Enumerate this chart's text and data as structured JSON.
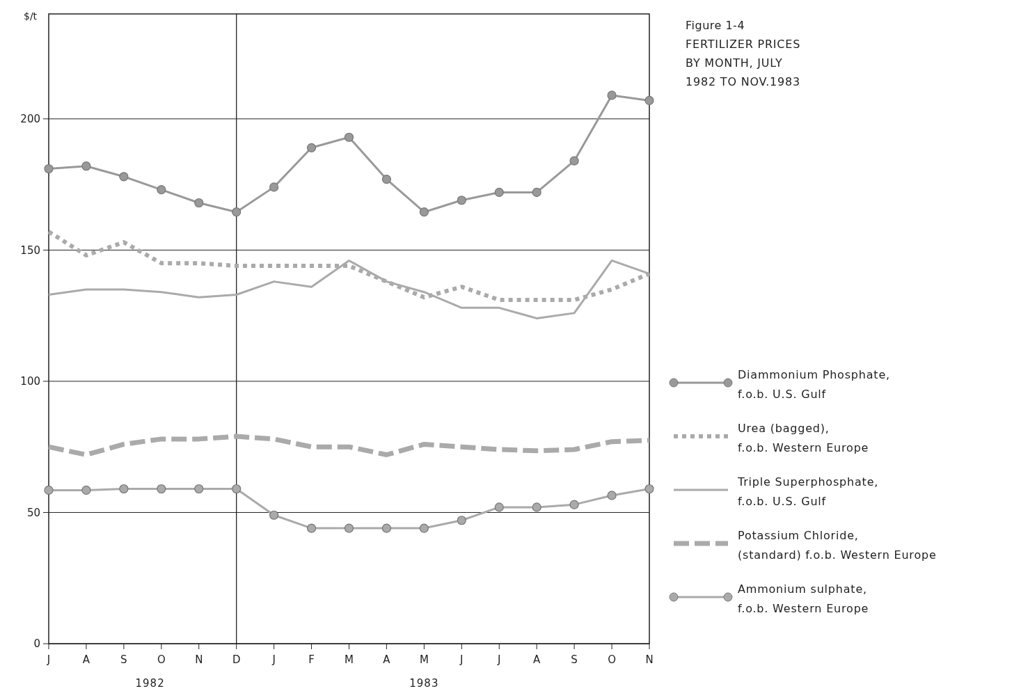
{
  "chart_data": {
    "type": "line",
    "title": "Figure 1-4",
    "subtitle": "FERTILIZER PRICES BY MONTH, JULY 1982 TO NOV.1983",
    "ylabel": "$/t",
    "categories": [
      "J",
      "A",
      "S",
      "O",
      "N",
      "D",
      "J",
      "F",
      "M",
      "A",
      "M",
      "J",
      "J",
      "A",
      "S",
      "O",
      "N"
    ],
    "ylim": [
      0,
      240
    ],
    "yticks": [
      0,
      50,
      100,
      150,
      200
    ],
    "grid": "y",
    "legend": "right",
    "ref_lines": [
      {
        "axis": "x",
        "value": "D",
        "color": "#222222"
      }
    ],
    "annotations": [
      "1982",
      "1983"
    ],
    "series": [
      {
        "name": "Diammonium Phosphate, f.o.b. U.S. Gulf",
        "color": "#999999",
        "marker": "circle",
        "line_style": "solid",
        "values": [
          181,
          182,
          178,
          173,
          168,
          164.5,
          174,
          189,
          193,
          177,
          164.5,
          169,
          172,
          172,
          184,
          209,
          207
        ]
      },
      {
        "name": "Urea (bagged), f.o.b. Western Europe",
        "color": "#aaaaaa",
        "marker": "none",
        "line_style": "dotted",
        "values": [
          157,
          148,
          153,
          145,
          145,
          144,
          144,
          144,
          144,
          138,
          132,
          136,
          131,
          131,
          131,
          135,
          141
        ]
      },
      {
        "name": "Triple Superphosphate, f.o.b. U.S. Gulf",
        "color": "#aaaaaa",
        "marker": "none",
        "line_style": "solid",
        "values": [
          133,
          135,
          135,
          134,
          132,
          133,
          138,
          136,
          146,
          138,
          134,
          128,
          128,
          124,
          126,
          146,
          141
        ]
      },
      {
        "name": "Potassium Chloride, (standard) f.o.b. Western Europe",
        "color": "#aaaaaa",
        "marker": "none",
        "line_style": "dashed",
        "values": [
          75,
          72,
          76,
          78,
          78,
          79,
          78,
          75,
          75,
          72,
          76,
          75,
          74,
          73.5,
          74,
          77,
          77.5
        ]
      },
      {
        "name": "Ammonium sulphate, f.o.b. Western Europe",
        "color": "#aaaaaa",
        "marker": "circle",
        "line_style": "solid",
        "values": [
          58.5,
          58.5,
          59,
          59,
          59,
          59,
          49,
          44,
          44,
          44,
          44,
          47,
          52,
          52,
          53,
          56.5,
          59
        ]
      }
    ]
  }
}
